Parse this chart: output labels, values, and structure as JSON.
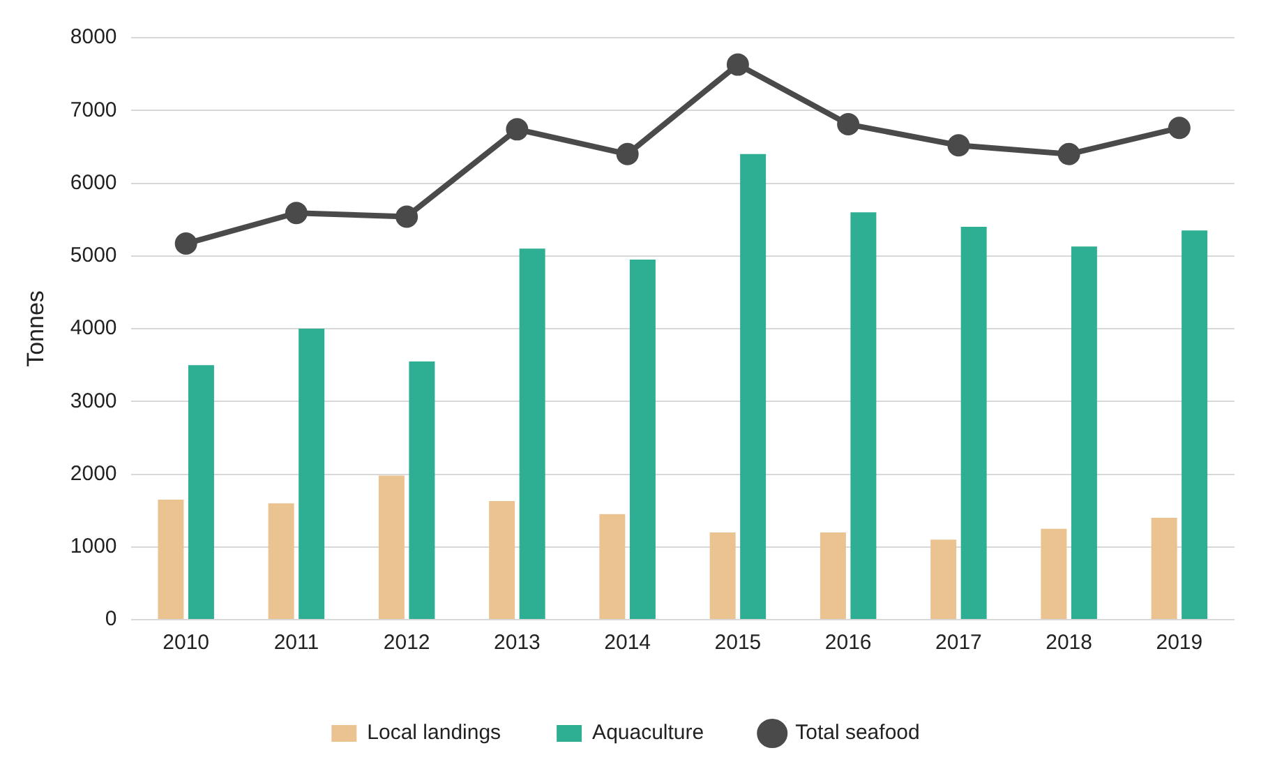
{
  "chart_data": {
    "type": "bar",
    "ylabel": "Tonnes",
    "categories": [
      "2010",
      "2011",
      "2012",
      "2013",
      "2014",
      "2015",
      "2016",
      "2017",
      "2018",
      "2019"
    ],
    "series": [
      {
        "name": "Local landings",
        "color": "#ebc391",
        "values": [
          1650,
          1600,
          1980,
          1630,
          1450,
          1200,
          1200,
          1100,
          1250,
          1400
        ]
      },
      {
        "name": "Aquaculture",
        "color": "#2eae93",
        "values": [
          3500,
          4000,
          3550,
          5100,
          4950,
          6400,
          5600,
          5400,
          5130,
          5350
        ]
      },
      {
        "name": "Total seafood",
        "type": "line",
        "color": "#4a4a4a",
        "values": [
          5170,
          5590,
          5540,
          6740,
          6400,
          7630,
          6810,
          6520,
          6400,
          6760
        ]
      }
    ],
    "ylim": [
      0,
      8000
    ],
    "yticks": [
      0,
      1000,
      2000,
      3000,
      4000,
      5000,
      6000,
      7000,
      8000
    ],
    "grid": "y",
    "legend": "bottom",
    "marker": "circle",
    "line_style": "solid"
  }
}
